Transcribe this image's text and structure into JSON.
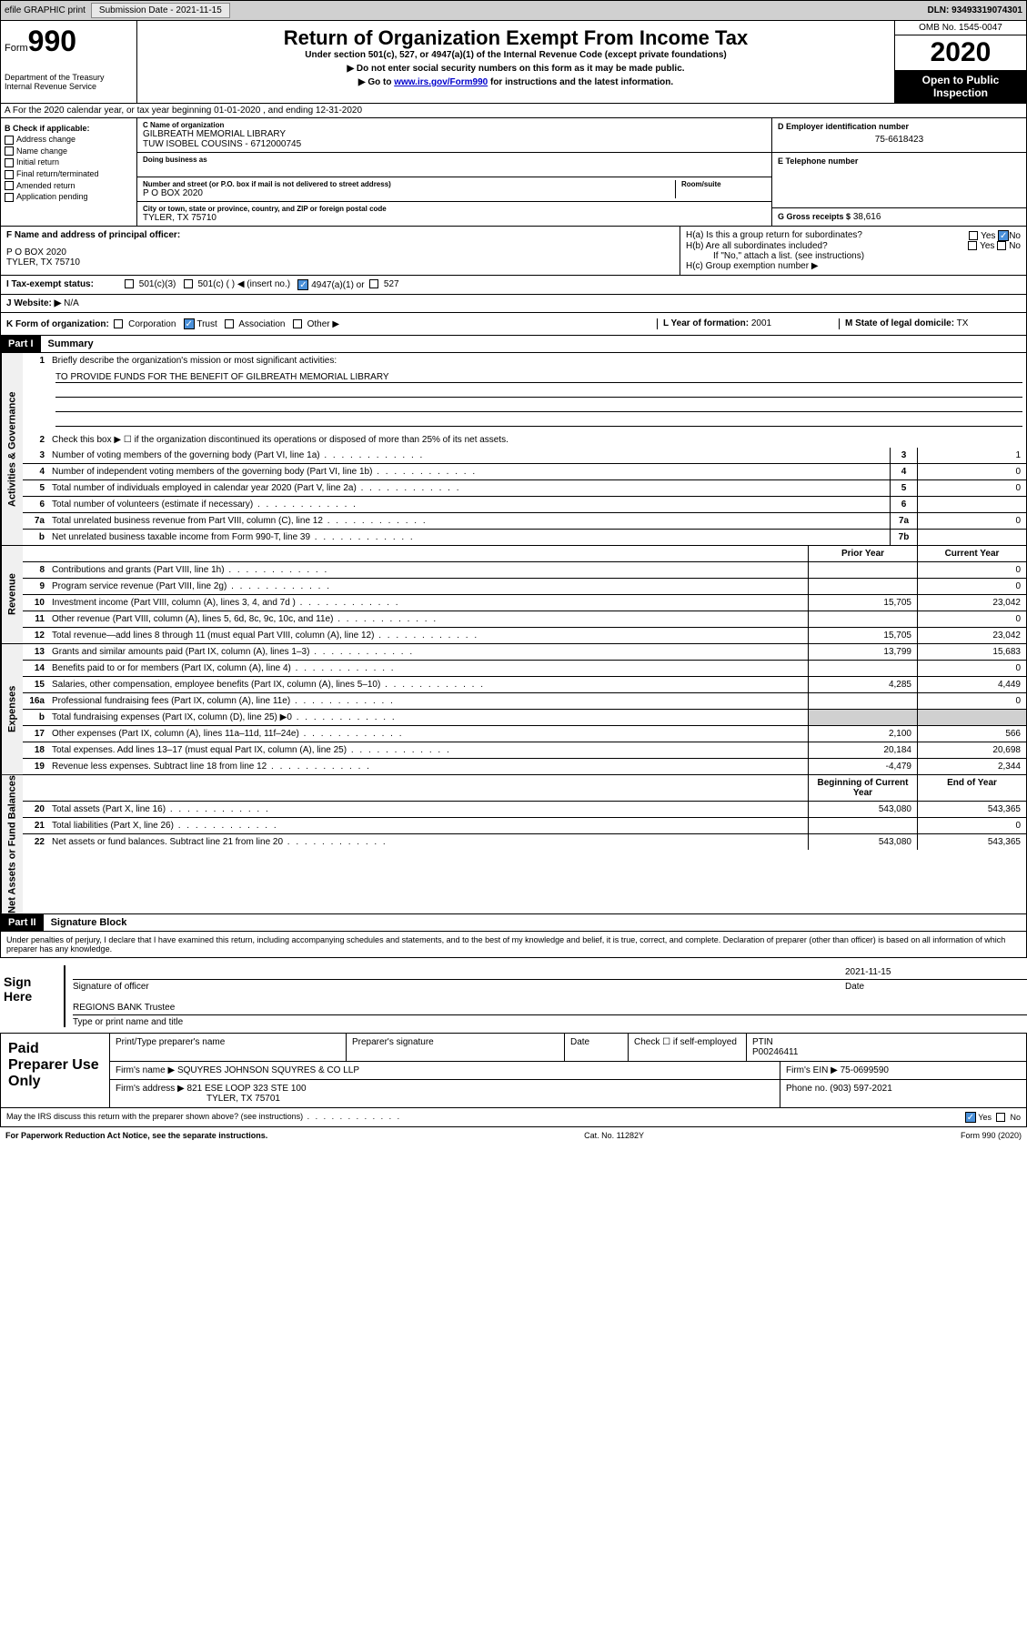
{
  "topbar": {
    "efile": "efile GRAPHIC print",
    "submission_label": "Submission Date - 2021-11-15",
    "dln": "DLN: 93493319074301"
  },
  "header": {
    "form_word": "Form",
    "form_num": "990",
    "dept": "Department of the Treasury\nInternal Revenue Service",
    "title": "Return of Organization Exempt From Income Tax",
    "sub": "Under section 501(c), 527, or 4947(a)(1) of the Internal Revenue Code (except private foundations)",
    "line1": "▶ Do not enter social security numbers on this form as it may be made public.",
    "line2_pre": "▶ Go to ",
    "line2_link": "www.irs.gov/Form990",
    "line2_post": " for instructions and the latest information.",
    "omb": "OMB No. 1545-0047",
    "year": "2020",
    "open": "Open to Public Inspection"
  },
  "sectionA": "A For the 2020 calendar year, or tax year beginning 01-01-2020   , and ending 12-31-2020",
  "boxB": {
    "label": "B Check if applicable:",
    "opts": [
      "Address change",
      "Name change",
      "Initial return",
      "Final return/terminated",
      "Amended return",
      "Application pending"
    ]
  },
  "boxC": {
    "name_label": "C Name of organization",
    "name1": "GILBREATH MEMORIAL LIBRARY",
    "name2": "TUW ISOBEL COUSINS - 6712000745",
    "dba_label": "Doing business as",
    "addr_label": "Number and street (or P.O. box if mail is not delivered to street address)",
    "room_label": "Room/suite",
    "addr": "P O BOX 2020",
    "city_label": "City or town, state or province, country, and ZIP or foreign postal code",
    "city": "TYLER, TX  75710"
  },
  "boxD": {
    "label": "D Employer identification number",
    "val": "75-6618423"
  },
  "boxE": {
    "label": "E Telephone number",
    "val": ""
  },
  "boxG": {
    "label": "G Gross receipts $",
    "val": "38,616"
  },
  "boxF": {
    "label": "F Name and address of principal officer:",
    "l1": "P O BOX 2020",
    "l2": "TYLER, TX  75710"
  },
  "boxH": {
    "a": "H(a)  Is this a group return for subordinates?",
    "b": "H(b)  Are all subordinates included?",
    "note": "If \"No,\" attach a list. (see instructions)",
    "c": "H(c)  Group exemption number ▶"
  },
  "rowI": {
    "label": "I   Tax-exempt status:",
    "opts": [
      "501(c)(3)",
      "501(c) (  ) ◀ (insert no.)",
      "4947(a)(1) or",
      "527"
    ]
  },
  "rowJ": {
    "label": "J   Website: ▶",
    "val": "N/A"
  },
  "rowK": {
    "label": "K Form of organization:",
    "opts": [
      "Corporation",
      "Trust",
      "Association",
      "Other ▶"
    ],
    "l_label": "L Year of formation:",
    "l_val": "2001",
    "m_label": "M State of legal domicile:",
    "m_val": "TX"
  },
  "part1": {
    "hdr": "Part I",
    "title": "Summary",
    "q1": "Briefly describe the organization's mission or most significant activities:",
    "mission": "TO PROVIDE FUNDS FOR THE BENEFIT OF GILBREATH MEMORIAL LIBRARY",
    "q2": "Check this box ▶ ☐  if the organization discontinued its operations or disposed of more than 25% of its net assets.",
    "sidebar1": "Activities & Governance",
    "sidebar2": "Revenue",
    "sidebar3": "Expenses",
    "sidebar4": "Net Assets or Fund Balances",
    "lines_gov": [
      {
        "n": "3",
        "d": "Number of voting members of the governing body (Part VI, line 1a)",
        "box": "3",
        "v": "1"
      },
      {
        "n": "4",
        "d": "Number of independent voting members of the governing body (Part VI, line 1b)",
        "box": "4",
        "v": "0"
      },
      {
        "n": "5",
        "d": "Total number of individuals employed in calendar year 2020 (Part V, line 2a)",
        "box": "5",
        "v": "0"
      },
      {
        "n": "6",
        "d": "Total number of volunteers (estimate if necessary)",
        "box": "6",
        "v": ""
      },
      {
        "n": "7a",
        "d": "Total unrelated business revenue from Part VIII, column (C), line 12",
        "box": "7a",
        "v": "0"
      },
      {
        "n": "b",
        "d": "Net unrelated business taxable income from Form 990-T, line 39",
        "box": "7b",
        "v": ""
      }
    ],
    "col_hdr_prior": "Prior Year",
    "col_hdr_curr": "Current Year",
    "col_hdr_beg": "Beginning of Current Year",
    "col_hdr_end": "End of Year",
    "lines_rev": [
      {
        "n": "8",
        "d": "Contributions and grants (Part VIII, line 1h)",
        "p": "",
        "c": "0"
      },
      {
        "n": "9",
        "d": "Program service revenue (Part VIII, line 2g)",
        "p": "",
        "c": "0"
      },
      {
        "n": "10",
        "d": "Investment income (Part VIII, column (A), lines 3, 4, and 7d )",
        "p": "15,705",
        "c": "23,042"
      },
      {
        "n": "11",
        "d": "Other revenue (Part VIII, column (A), lines 5, 6d, 8c, 9c, 10c, and 11e)",
        "p": "",
        "c": "0"
      },
      {
        "n": "12",
        "d": "Total revenue—add lines 8 through 11 (must equal Part VIII, column (A), line 12)",
        "p": "15,705",
        "c": "23,042"
      }
    ],
    "lines_exp": [
      {
        "n": "13",
        "d": "Grants and similar amounts paid (Part IX, column (A), lines 1–3)",
        "p": "13,799",
        "c": "15,683"
      },
      {
        "n": "14",
        "d": "Benefits paid to or for members (Part IX, column (A), line 4)",
        "p": "",
        "c": "0"
      },
      {
        "n": "15",
        "d": "Salaries, other compensation, employee benefits (Part IX, column (A), lines 5–10)",
        "p": "4,285",
        "c": "4,449"
      },
      {
        "n": "16a",
        "d": "Professional fundraising fees (Part IX, column (A), line 11e)",
        "p": "",
        "c": "0"
      },
      {
        "n": "b",
        "d": "Total fundraising expenses (Part IX, column (D), line 25) ▶0",
        "p": "shaded",
        "c": "shaded"
      },
      {
        "n": "17",
        "d": "Other expenses (Part IX, column (A), lines 11a–11d, 11f–24e)",
        "p": "2,100",
        "c": "566"
      },
      {
        "n": "18",
        "d": "Total expenses. Add lines 13–17 (must equal Part IX, column (A), line 25)",
        "p": "20,184",
        "c": "20,698"
      },
      {
        "n": "19",
        "d": "Revenue less expenses. Subtract line 18 from line 12",
        "p": "-4,479",
        "c": "2,344"
      }
    ],
    "lines_net": [
      {
        "n": "20",
        "d": "Total assets (Part X, line 16)",
        "p": "543,080",
        "c": "543,365"
      },
      {
        "n": "21",
        "d": "Total liabilities (Part X, line 26)",
        "p": "",
        "c": "0"
      },
      {
        "n": "22",
        "d": "Net assets or fund balances. Subtract line 21 from line 20",
        "p": "543,080",
        "c": "543,365"
      }
    ]
  },
  "part2": {
    "hdr": "Part II",
    "title": "Signature Block",
    "decl": "Under penalties of perjury, I declare that I have examined this return, including accompanying schedules and statements, and to the best of my knowledge and belief, it is true, correct, and complete. Declaration of preparer (other than officer) is based on all information of which preparer has any knowledge.",
    "sign_here": "Sign Here",
    "sig_officer": "Signature of officer",
    "sig_date": "2021-11-15",
    "date_label": "Date",
    "name_title": "REGIONS BANK  Trustee",
    "name_title_label": "Type or print name and title",
    "paid": "Paid Preparer Use Only",
    "prep_name_label": "Print/Type preparer's name",
    "prep_sig_label": "Preparer's signature",
    "prep_date_label": "Date",
    "check_self": "Check ☐ if self-employed",
    "ptin_label": "PTIN",
    "ptin": "P00246411",
    "firm_name_label": "Firm's name   ▶",
    "firm_name": "SQUYRES JOHNSON SQUYRES & CO LLP",
    "firm_ein_label": "Firm's EIN ▶",
    "firm_ein": "75-0699590",
    "firm_addr_label": "Firm's address ▶",
    "firm_addr1": "821 ESE LOOP 323 STE 100",
    "firm_addr2": "TYLER, TX  75701",
    "phone_label": "Phone no.",
    "phone": "(903) 597-2021",
    "discuss": "May the IRS discuss this return with the preparer shown above? (see instructions)",
    "paperwork": "For Paperwork Reduction Act Notice, see the separate instructions.",
    "catno": "Cat. No. 11282Y",
    "formfoot": "Form 990 (2020)"
  }
}
